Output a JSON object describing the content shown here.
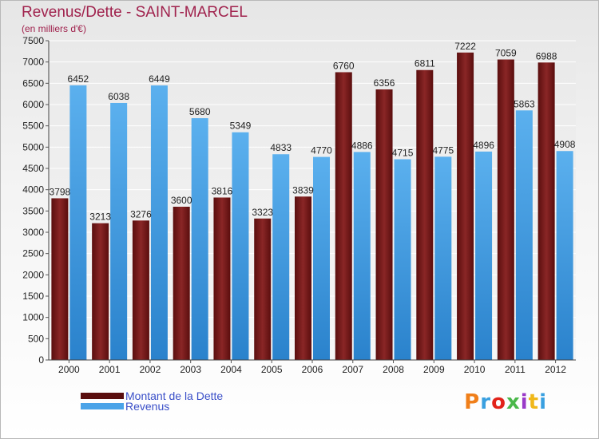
{
  "title": "Revenus/Dette - SAINT-MARCEL",
  "subtitle": "(en milliers d'€)",
  "legend": {
    "debt_label": "Montant de la Dette",
    "revenue_label": "Revenus"
  },
  "logo_text": "Proxiti",
  "colors": {
    "debt": "#7a1a1a",
    "revenue": "#4aa3e8",
    "title": "#a0224d",
    "legend_text": "#3a4fc8"
  },
  "chart_data": {
    "type": "bar",
    "categories": [
      "2000",
      "2001",
      "2002",
      "2003",
      "2004",
      "2005",
      "2006",
      "2007",
      "2008",
      "2009",
      "2010",
      "2011",
      "2012"
    ],
    "series": [
      {
        "name": "Montant de la Dette",
        "values": [
          3798,
          3213,
          3276,
          3600,
          3816,
          3323,
          3839,
          6760,
          6356,
          6811,
          7222,
          7059,
          6988
        ]
      },
      {
        "name": "Revenus",
        "values": [
          6452,
          6038,
          6449,
          5680,
          5349,
          4833,
          4770,
          4886,
          4715,
          4775,
          4896,
          5863,
          4908
        ]
      }
    ],
    "ylim": [
      0,
      7500
    ],
    "yticks": [
      0,
      500,
      1000,
      1500,
      2000,
      2500,
      3000,
      3500,
      4000,
      4500,
      5000,
      5500,
      6000,
      6500,
      7000,
      7500
    ],
    "grid": true,
    "legend_position": "bottom-left"
  }
}
